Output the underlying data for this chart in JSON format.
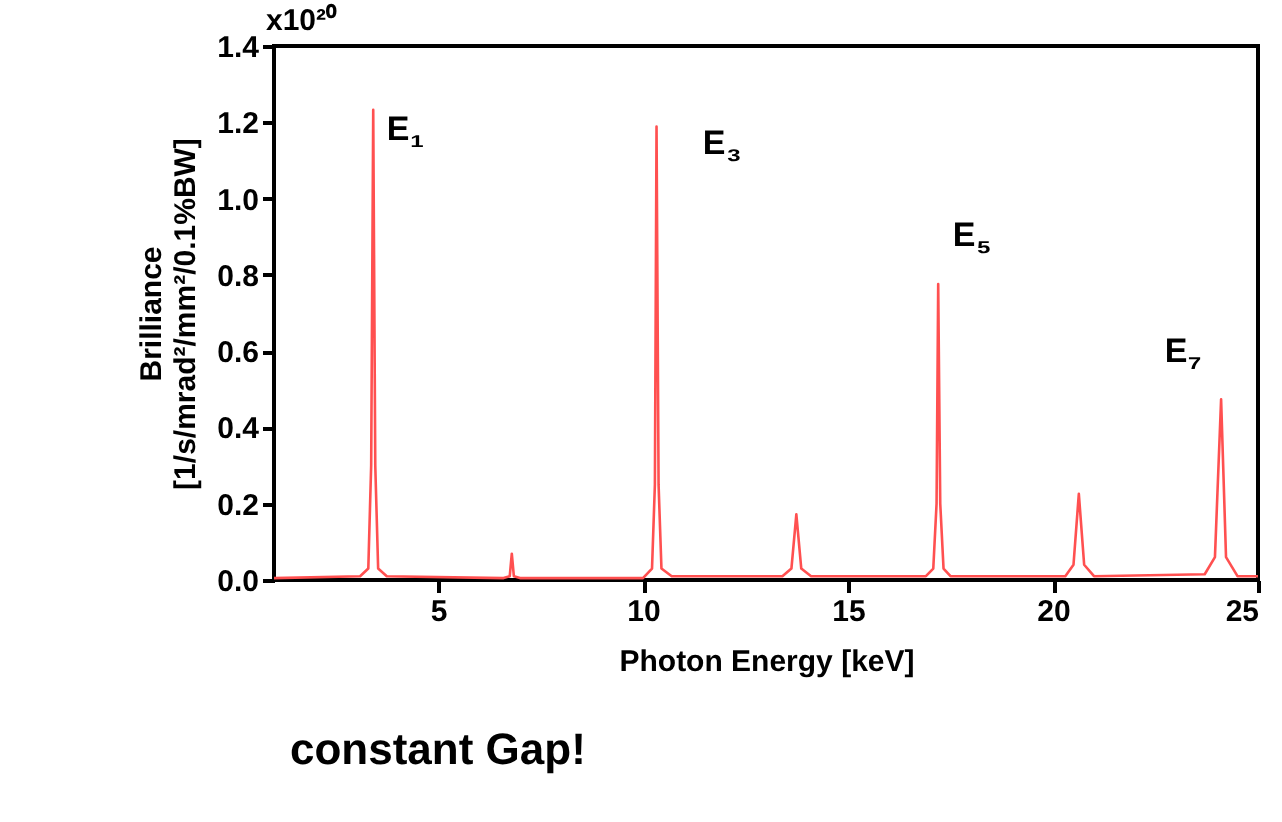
{
  "chart_data": {
    "type": "line",
    "xlabel": "Photon Energy  [keV]",
    "ylabel": [
      "Brilliance",
      "[1/s/mrad²/mm²/0.1%BW]"
    ],
    "x": [
      1,
      3.1,
      3.3,
      3.37,
      3.42,
      3.47,
      3.54,
      3.75,
      6.6,
      6.75,
      6.8,
      6.85,
      7.0,
      10.0,
      10.22,
      10.29,
      10.33,
      10.38,
      10.45,
      10.7,
      13.4,
      13.62,
      13.74,
      13.86,
      14.1,
      16.9,
      17.08,
      17.16,
      17.2,
      17.25,
      17.33,
      17.5,
      20.3,
      20.5,
      20.63,
      20.76,
      21.0,
      23.7,
      23.95,
      24.1,
      24.22,
      24.5,
      25
    ],
    "series": [
      {
        "color": "#ff5050",
        "values": [
          0.005,
          0.01,
          0.03,
          0.3,
          1.233,
          0.3,
          0.03,
          0.01,
          0.005,
          0.01,
          0.069,
          0.01,
          0.005,
          0.005,
          0.03,
          0.25,
          1.189,
          0.25,
          0.03,
          0.01,
          0.01,
          0.03,
          0.172,
          0.03,
          0.01,
          0.01,
          0.03,
          0.2,
          0.776,
          0.2,
          0.03,
          0.01,
          0.01,
          0.04,
          0.226,
          0.04,
          0.01,
          0.015,
          0.06,
          0.474,
          0.06,
          0.01,
          0.01
        ]
      }
    ],
    "xlim": [
      1,
      25
    ],
    "xticks": [
      5,
      10,
      15,
      20,
      25
    ],
    "ylim": [
      0,
      1.4
    ],
    "yticks": [
      {
        "value": 0,
        "label": "0.0"
      },
      0.2,
      0.4,
      0.6,
      0.8,
      {
        "value": 1,
        "label": "1.0"
      },
      1.2,
      1.4
    ],
    "grid": false,
    "marker": "none",
    "line_style": "solid",
    "annotations": [
      "E₁",
      "E₃",
      "E₅",
      "E₇",
      "constant Gap!",
      "x10²⁰"
    ]
  }
}
